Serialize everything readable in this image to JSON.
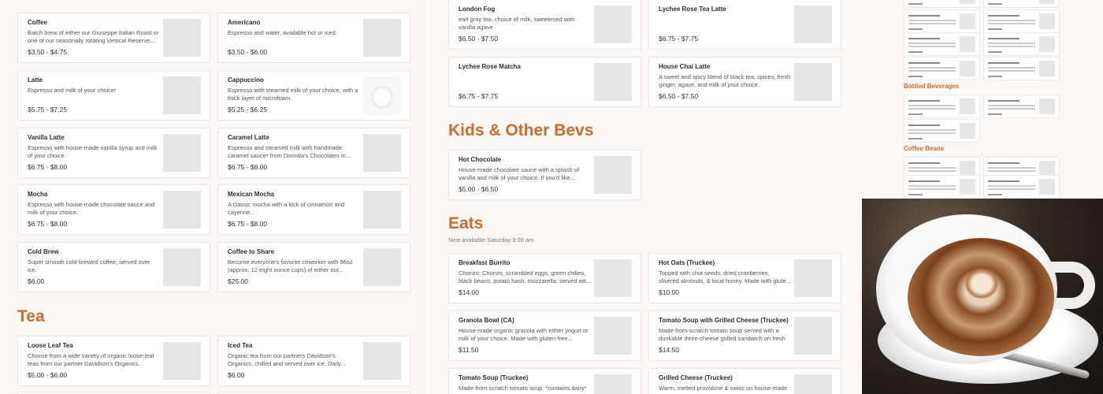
{
  "panel1": {
    "cards": [
      {
        "title": "Coffee",
        "desc": "Batch brew of either our Giuseppe Italian Roast or one of our seasonally rotating Vertical Reserve...",
        "price": "$3.50 - $4.75"
      },
      {
        "title": "Americano",
        "desc": "Espresso and water, available hot or iced.",
        "price": "$3.50 - $6.00"
      },
      {
        "title": "Latte",
        "desc": "Espresso and milk of your choice!",
        "price": "$5.75 - $7.25"
      },
      {
        "title": "Cappuccino",
        "desc": "Espresso with steamed milk of your choice, with a thick layer of microfoam.",
        "price": "$5.25 - $6.25",
        "photo": true
      },
      {
        "title": "Vanilla Latte",
        "desc": "Espresso with house-made vanilla syrup and milk of your choice.",
        "price": "$6.75 - $8.00"
      },
      {
        "title": "Caramel Latte",
        "desc": "Espresso and steamed milk with handmade caramel sauce* from Dorinda's Chocolates in...",
        "price": "$6.75 - $8.00"
      },
      {
        "title": "Mocha",
        "desc": "Espresso with house-made chocolate sauce and milk of your choice.",
        "price": "$6.75 - $8.00"
      },
      {
        "title": "Mexican Mocha",
        "desc": "A classic mocha with a kick of cinnamon and cayenne..",
        "price": "$6.75 - $8.00"
      },
      {
        "title": "Cold Brew",
        "desc": "Super smooth cold-brewed coffee, served over ice.",
        "price": "$6.00"
      },
      {
        "title": "Coffee to Share",
        "desc": "Become everyone's favorite coworker with 96oz (approx. 12 eight ounce cups) of either our...",
        "price": "$25.00"
      }
    ],
    "tea_heading": "Tea",
    "tea_cards": [
      {
        "title": "Loose Leaf Tea",
        "desc": "Choose from a wide variety of organic loose-leaf teas from our partner Davidson's Organics.",
        "price": "$5.00 - $6.00"
      },
      {
        "title": "Iced Tea",
        "desc": "Organic tea from our partners Davidson's Organics, chilled and served over ice. Daily...",
        "price": "$6.00"
      }
    ]
  },
  "panel2": {
    "cards": [
      {
        "title": "London Fog",
        "desc": "earl gray tea, choice of milk, sweetened with vanilla agave",
        "price": "$6.50 - $7.50"
      },
      {
        "title": "Lychee Rose Tea Latte",
        "desc": "",
        "price": "$6.75 - $7.75"
      },
      {
        "title": "Lychee Rose Matcha",
        "desc": "",
        "price": "$6.75 - $7.75"
      },
      {
        "title": "House Chai Latte",
        "desc": "A sweet and spicy blend of black tea, spices, fresh ginger, agave, and milk of your choice.",
        "price": "$6.50 - $7.50"
      }
    ],
    "kids_heading": "Kids & Other Bevs",
    "kids_cards": [
      {
        "title": "Hot Chocolate",
        "desc": "House-made chocolate sauce with a splash of vanilla and milk of your choice. If you'd like...",
        "price": "$5.00 - $6.50"
      }
    ],
    "eats_heading": "Eats",
    "eats_subtitle": "Next available Saturday 9:00 am",
    "eats_cards": [
      {
        "title": "Breakfast Burrito",
        "desc": "Chorizo: Chorizo, scrambled eggs, green chilies, black beans, potato hash, mozzarella; served wit...",
        "price": "$14.00"
      },
      {
        "title": "Hot Oats (Truckee)",
        "desc": "Topped with chia seeds, dried cranberries, slivered almonds, & local honey. Made with glute...",
        "price": "$10.00"
      },
      {
        "title": "Granola Bowl (CA)",
        "desc": "House-made organic granola with either yogurt or milk of your choice. Made with gluten-free...",
        "price": "$11.50"
      },
      {
        "title": "Tomato Soup with Grilled Cheese (Truckee)",
        "desc": "Made-from-scratch tomato soup served with a dunkable three-cheese grilled sandwich on fresh sourdough bread. Vegetarian...",
        "price": "$14.50"
      },
      {
        "title": "Tomato Soup (Truckee)",
        "desc": "Made-from-scratch tomato soup. *contains dairy*",
        "price": ""
      },
      {
        "title": "Grilled Cheese (Truckee)",
        "desc": "Warm, melted provolone & swiss on house-made",
        "price": ""
      }
    ]
  },
  "panel3": {
    "bottled_heading": "Bottled Beverages",
    "beans_heading": "Coffee Beans"
  },
  "colors": {
    "accent": "#cd6d2c",
    "background": "#fdf8f6"
  }
}
